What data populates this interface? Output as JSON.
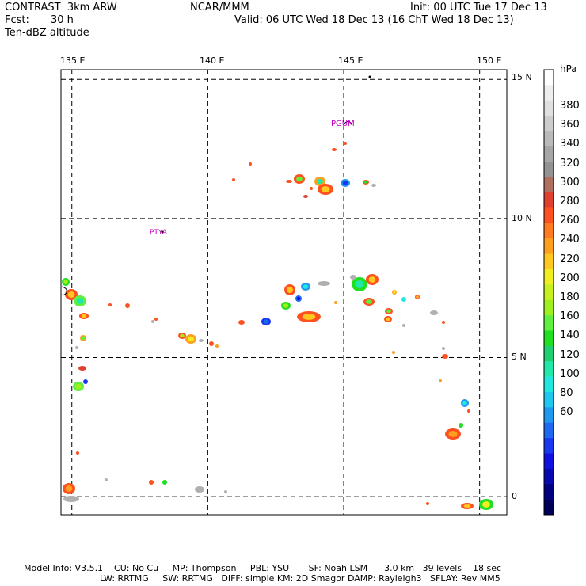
{
  "header": {
    "model": "CONTRAST  3km ARW",
    "center": "NCAR/MMM",
    "init": "Init: 00 UTC Tue 17 Dec 13",
    "fcst_label": "Fcst:",
    "fcst_value": "30 h",
    "valid": "Valid: 06 UTC Wed 18 Dec 13 (16 ChT Wed 18 Dec 13)",
    "field": "Ten-dBZ altitude"
  },
  "map": {
    "lon_labels": [
      "135 E",
      "140 E",
      "145 E",
      "150 E"
    ],
    "lat_labels": [
      "15 N",
      "10 N",
      "5 N",
      "0"
    ],
    "lon_range": [
      134.6,
      151.0
    ],
    "lat_range": [
      -0.65,
      15.35
    ],
    "gridlines_lon": [
      135,
      140,
      145,
      150
    ],
    "gridlines_lat": [
      0,
      5,
      10,
      15
    ],
    "station_labels": [
      {
        "name": "PGUM",
        "lon": 144.8,
        "lat": 13.5
      },
      {
        "name": "PTYA",
        "lon": 138.2,
        "lat": 9.5
      }
    ]
  },
  "colorbar": {
    "units": "hPa",
    "labels": [
      "380",
      "360",
      "340",
      "320",
      "300",
      "280",
      "260",
      "240",
      "220",
      "200",
      "180",
      "160",
      "140",
      "120",
      "100",
      "80",
      "60"
    ],
    "colors": [
      "#ffffff",
      "#eeeeee",
      "#e0e0e0",
      "#cdcdcd",
      "#bababa",
      "#a6a6a6",
      "#939393",
      "#b07060",
      "#e04030",
      "#ff5020",
      "#ff7a20",
      "#ff9f20",
      "#ffc820",
      "#f0ee20",
      "#c8f020",
      "#a0f020",
      "#60f040",
      "#20e020",
      "#20d070",
      "#20e8a8",
      "#20e8e0",
      "#20c8f0",
      "#2098f0",
      "#2068f0",
      "#1838f0",
      "#1010e0",
      "#0808b0",
      "#000080",
      "#00005a"
    ]
  },
  "footer": {
    "line1": "Model Info: V3.5.1    CU: No Cu     MP: Thompson     PBL: YSU       SF: Noah LSM      3.0 km   39 levels    18 sec",
    "line2": "LW: RRTMG     SW: RRTMG   DIFF: simple KM: 2D Smagor DAMP: Rayleigh3   SFLAY: Rev MM5"
  }
}
